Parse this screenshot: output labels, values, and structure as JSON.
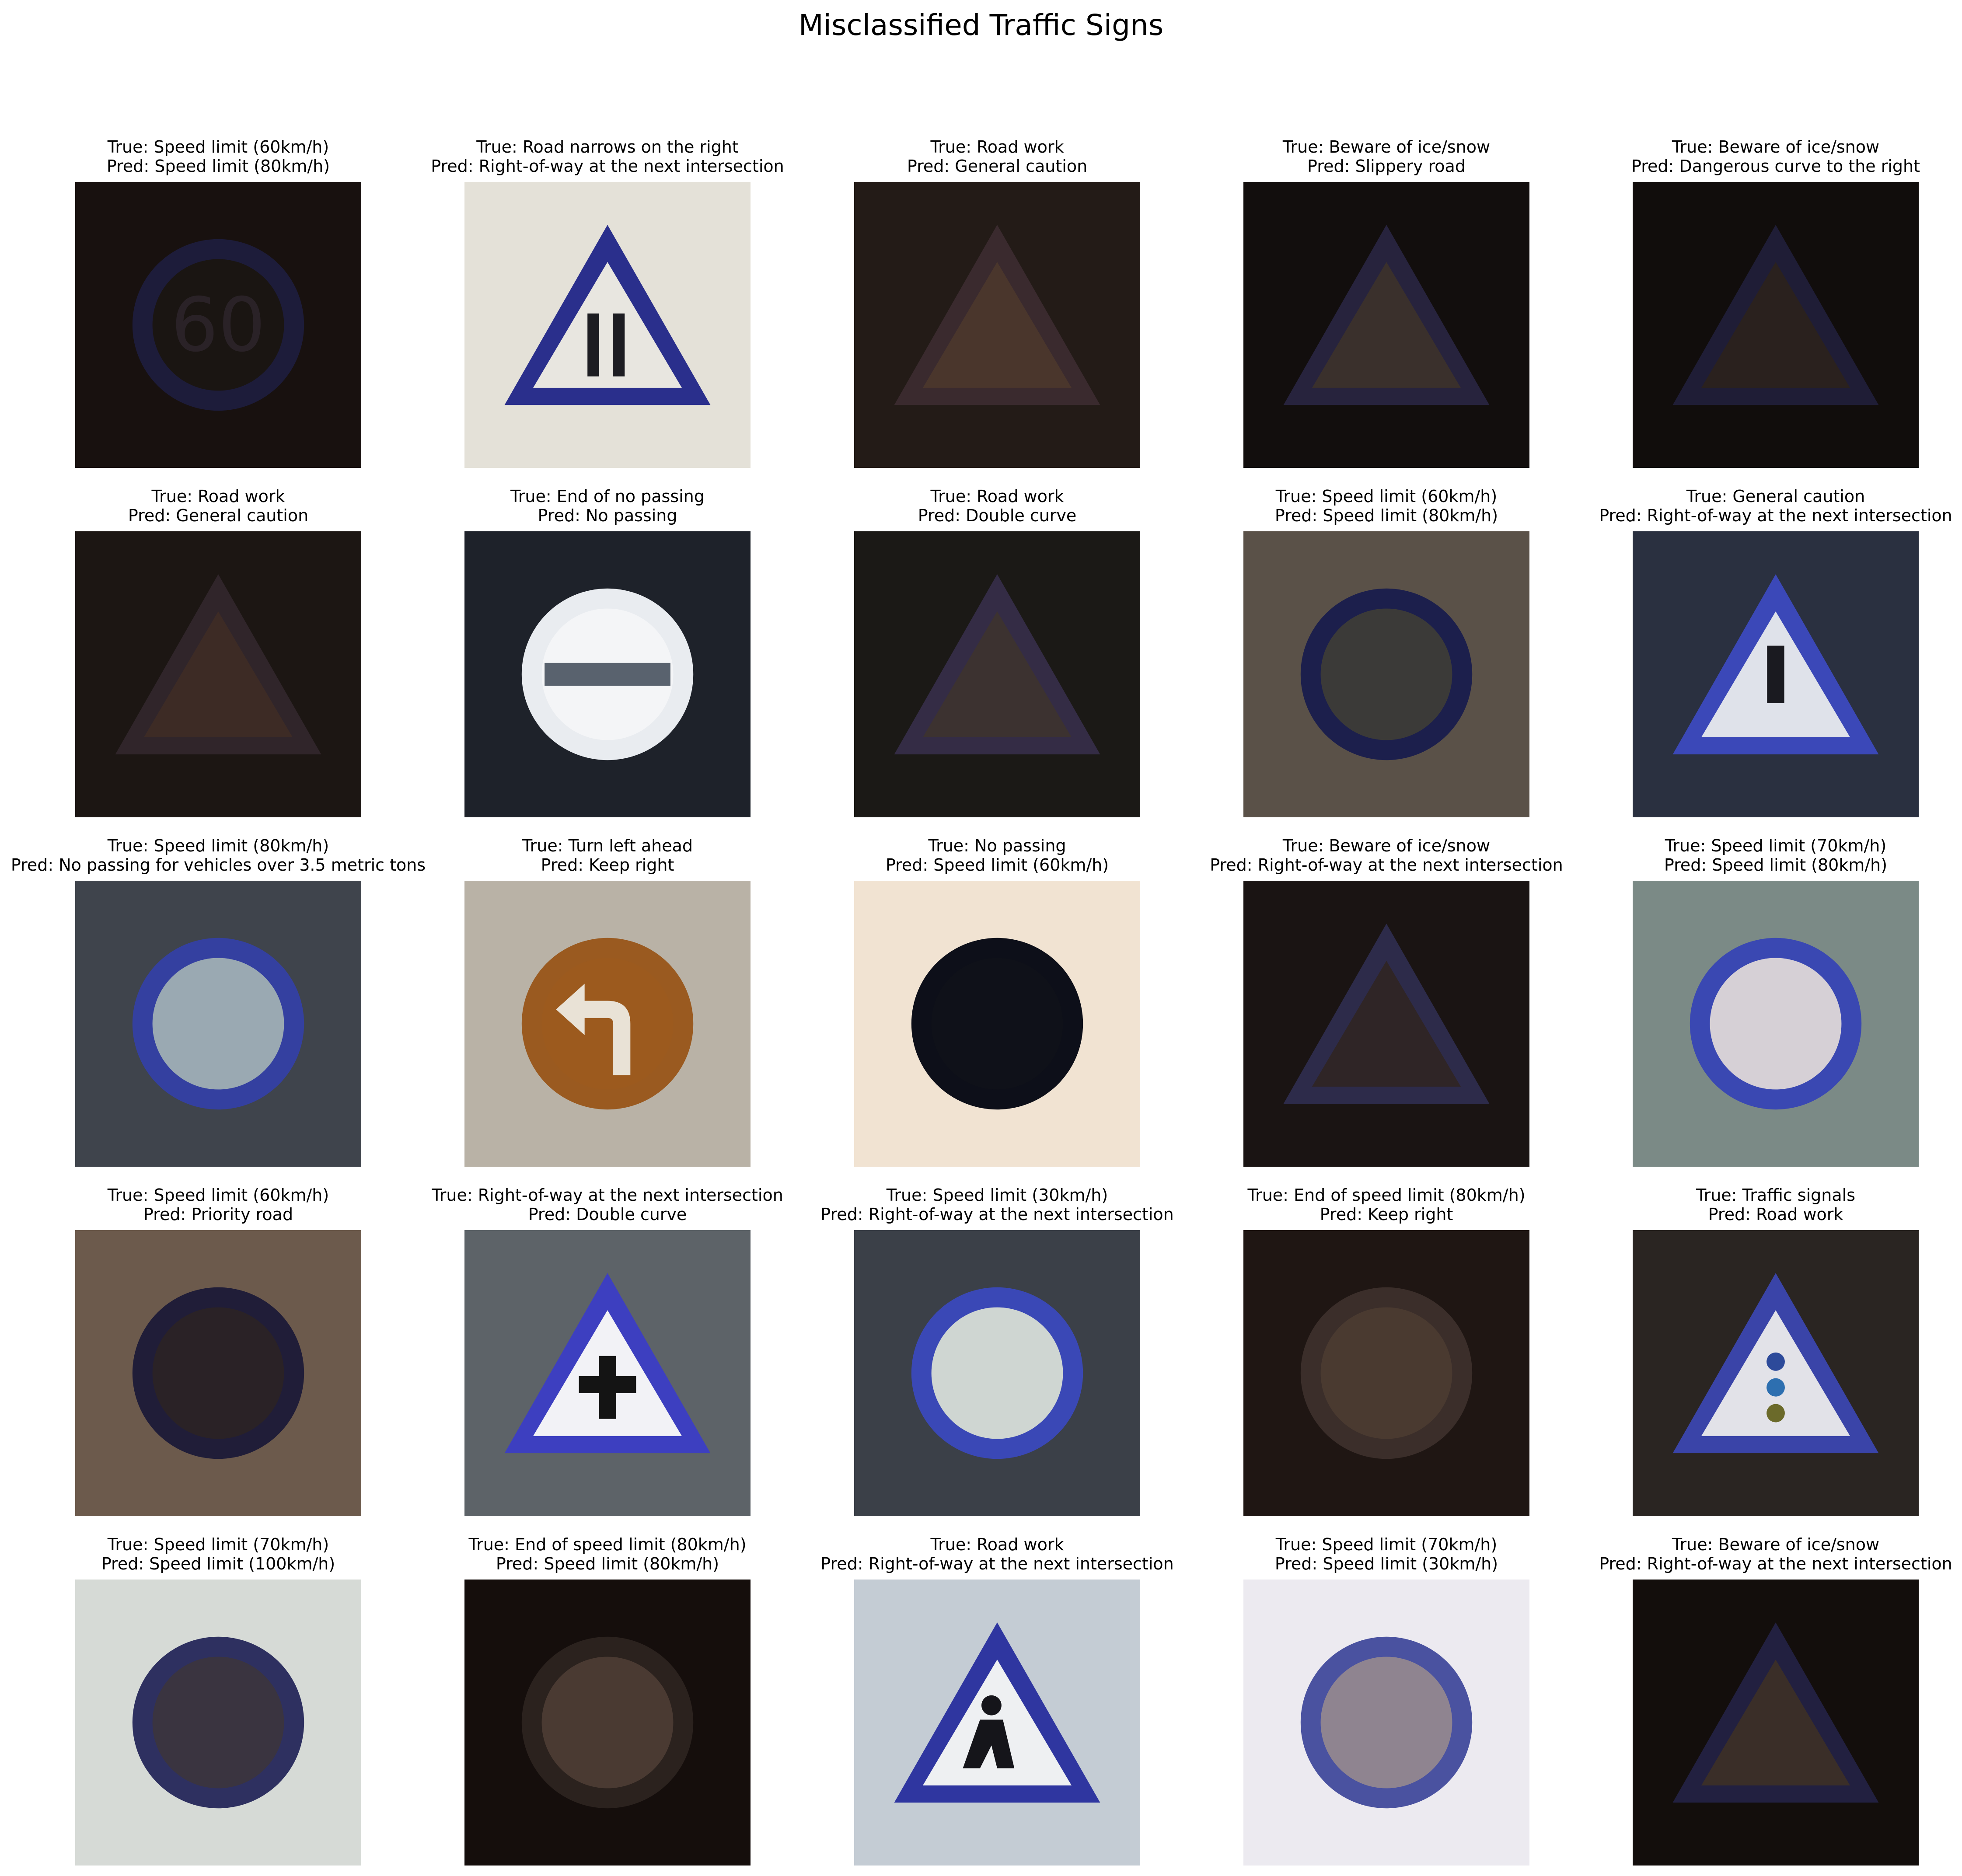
{
  "title": "Misclassified Traffic Signs",
  "samples": [
    {
      "true": "True: Speed limit (60km/h)",
      "pred": "Pred: Speed limit (80km/h)",
      "bg": "#18110f",
      "shape": "circle",
      "ring": "#1d1c3a",
      "fill": "#1a1512",
      "symbol": "60",
      "symbol_color": "#2a2227"
    },
    {
      "true": "True: Road narrows on the right",
      "pred": "Pred: Right-of-way at the next intersection",
      "bg": "#e4e1d8",
      "shape": "triangle",
      "ring": "#2a2f8c",
      "fill": "#e8e6e0",
      "symbol": "narrows",
      "symbol_color": "#1d1d22"
    },
    {
      "true": "True: Road work",
      "pred": "Pred: General caution",
      "bg": "#231b17",
      "shape": "triangle",
      "ring": "#3a2a2e",
      "fill": "#4a362c",
      "symbol": "",
      "symbol_color": "#2b1f1a"
    },
    {
      "true": "True: Beware of ice/snow",
      "pred": "Pred: Slippery road",
      "bg": "#120e0d",
      "shape": "triangle",
      "ring": "#27233d",
      "fill": "#3a302c",
      "symbol": "",
      "symbol_color": "#5a4c46"
    },
    {
      "true": "True: Beware of ice/snow",
      "pred": "Pred: Dangerous curve to the right",
      "bg": "#110d0c",
      "shape": "triangle",
      "ring": "#1f1d36",
      "fill": "#2a211e",
      "symbol": "",
      "symbol_color": "#3b2c28"
    },
    {
      "true": "True: Road work",
      "pred": "Pred: General caution",
      "bg": "#1c1613",
      "shape": "triangle",
      "ring": "#30252a",
      "fill": "#3d2b25",
      "symbol": "",
      "symbol_color": "#2a1e1a"
    },
    {
      "true": "True: End of no passing",
      "pred": "Pred: No passing",
      "bg": "#1e222a",
      "shape": "circle",
      "ring": "#e9ecf0",
      "fill": "#f4f5f7",
      "symbol": "bar",
      "symbol_color": "#59626e"
    },
    {
      "true": "True: Road work",
      "pred": "Pred: Double curve",
      "bg": "#1b1916",
      "shape": "triangle",
      "ring": "#342c45",
      "fill": "#3c3230",
      "symbol": "",
      "symbol_color": "#2b2422"
    },
    {
      "true": "True: Speed limit (60km/h)",
      "pred": "Pred: Speed limit (80km/h)",
      "bg": "#5a5148",
      "shape": "circle",
      "ring": "#1c1f4c",
      "fill": "#3b3a38",
      "symbol": "",
      "symbol_color": "#4a4a40"
    },
    {
      "true": "True: General caution",
      "pred": "Pred: Right-of-way at the next intersection",
      "bg": "#2a3040",
      "shape": "triangle",
      "ring": "#3b48b8",
      "fill": "#dfe2ea",
      "symbol": "excl",
      "symbol_color": "#1a1a20"
    },
    {
      "true": "True: Speed limit (80km/h)",
      "pred": "Pred: No passing for vehicles over 3.5 metric tons",
      "bg": "#3f444c",
      "shape": "circle",
      "ring": "#3440a0",
      "fill": "#9aa9b2",
      "symbol": "",
      "symbol_color": "#4a6a6a"
    },
    {
      "true": "True: Turn left ahead",
      "pred": "Pred: Keep right",
      "bg": "#b9b2a6",
      "shape": "circle",
      "ring": "#9a5a20",
      "fill": "#9c5a1e",
      "symbol": "arrow",
      "symbol_color": "#e9e2d6"
    },
    {
      "true": "True: No passing",
      "pred": "Pred: Speed limit (60km/h)",
      "bg": "#f1e3d2",
      "shape": "circle",
      "ring": "#0d0f19",
      "fill": "#0f1119",
      "symbol": "",
      "symbol_color": "#1a1c24"
    },
    {
      "true": "True: Beware of ice/snow",
      "pred": "Pred: Right-of-way at the next intersection",
      "bg": "#1a1413",
      "shape": "triangle",
      "ring": "#2d2b4a",
      "fill": "#2f2526",
      "symbol": "",
      "symbol_color": "#3a2f30"
    },
    {
      "true": "True: Speed limit (70km/h)",
      "pred": "Pred: Speed limit (80km/h)",
      "bg": "#7b8a86",
      "shape": "circle",
      "ring": "#3a48b2",
      "fill": "#d6d0d6",
      "symbol": "",
      "symbol_color": "#6a5a62"
    },
    {
      "true": "True: Speed limit (60km/h)",
      "pred": "Pred: Priority road",
      "bg": "#6c5a4c",
      "shape": "circle",
      "ring": "#201d38",
      "fill": "#2a2226",
      "symbol": "",
      "symbol_color": "#3a2e30"
    },
    {
      "true": "True: Right-of-way at the next intersection",
      "pred": "Pred: Double curve",
      "bg": "#5d6368",
      "shape": "triangle",
      "ring": "#3d3fc0",
      "fill": "#f2f2f6",
      "symbol": "cross",
      "symbol_color": "#141414"
    },
    {
      "true": "True: Speed limit (30km/h)",
      "pred": "Pred: Right-of-way at the next intersection",
      "bg": "#3b4048",
      "shape": "circle",
      "ring": "#3a48b6",
      "fill": "#cfd6d2",
      "symbol": "",
      "symbol_color": "#3a3a3a"
    },
    {
      "true": "True: End of speed limit (80km/h)",
      "pred": "Pred: Keep right",
      "bg": "#1f1613",
      "shape": "circle",
      "ring": "#3b2e2a",
      "fill": "#4a3a30",
      "symbol": "",
      "symbol_color": "#2a201b"
    },
    {
      "true": "True: Traffic signals",
      "pred": "Pred: Road work",
      "bg": "#2a2522",
      "shape": "triangle",
      "ring": "#3a44a8",
      "fill": "#e2e2e8",
      "symbol": "lights",
      "symbol_color": "#2d6fb0"
    },
    {
      "true": "True: Speed limit (70km/h)",
      "pred": "Pred: Speed limit (100km/h)",
      "bg": "#d6dad6",
      "shape": "circle",
      "ring": "#2e3060",
      "fill": "#3a3440",
      "symbol": "",
      "symbol_color": "#55464c"
    },
    {
      "true": "True: End of speed limit (80km/h)",
      "pred": "Pred: Speed limit (80km/h)",
      "bg": "#150e0c",
      "shape": "circle",
      "ring": "#2b221e",
      "fill": "#4a3a32",
      "symbol": "",
      "symbol_color": "#2a1e1a"
    },
    {
      "true": "True: Road work",
      "pred": "Pred: Right-of-way at the next intersection",
      "bg": "#c4ccd4",
      "shape": "triangle",
      "ring": "#2f36a0",
      "fill": "#eef0f2",
      "symbol": "worker",
      "symbol_color": "#15151a"
    },
    {
      "true": "True: Speed limit (70km/h)",
      "pred": "Pred: Speed limit (30km/h)",
      "bg": "#eceaf0",
      "shape": "circle",
      "ring": "#4a52a0",
      "fill": "#8f8490",
      "symbol": "",
      "symbol_color": "#6e6470"
    },
    {
      "true": "True: Beware of ice/snow",
      "pred": "Pred: Right-of-way at the next intersection",
      "bg": "#130e0c",
      "shape": "triangle",
      "ring": "#222040",
      "fill": "#3a2e28",
      "symbol": "",
      "symbol_color": "#4a3a32"
    }
  ]
}
